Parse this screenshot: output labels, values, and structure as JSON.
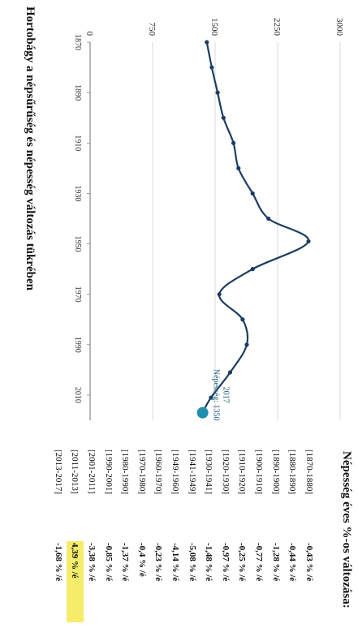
{
  "colors": {
    "line": "#1b3d63",
    "accent": "#1f8fb0",
    "grid": "#d0d0d0",
    "highlight": "#f5ec6a"
  },
  "chart_data": {
    "type": "line",
    "title": "Hortobágy a népsűrűség és népesség változás tükrében",
    "xlabel": "",
    "ylabel": "",
    "xlim": [
      1870,
      2020
    ],
    "ylim": [
      0,
      3000
    ],
    "y_ticks": [
      "0",
      "750",
      "1500",
      "2250",
      "3000"
    ],
    "x_ticks": [
      "1870",
      "1890",
      "1910",
      "1930",
      "1950",
      "1970",
      "1990",
      "2010"
    ],
    "grid": true,
    "series": [
      {
        "values": [
          [
            1870,
            1400
          ],
          [
            1880,
            1460
          ],
          [
            1890,
            1530
          ],
          [
            1900,
            1600
          ],
          [
            1910,
            1720
          ],
          [
            1920,
            1780
          ],
          [
            1930,
            1950
          ],
          [
            1940,
            2140
          ],
          [
            1949,
            2620
          ],
          [
            1960,
            1950
          ],
          [
            1970,
            1550
          ],
          [
            1980,
            1830
          ],
          [
            1990,
            1880
          ],
          [
            2001,
            1680
          ],
          [
            2011,
            1450
          ],
          [
            2017,
            1350
          ]
        ]
      }
    ],
    "annotation": {
      "year_label": "2017",
      "text": "Népesség: 1350"
    }
  },
  "table": {
    "title": "Népesség éves %-os változása:",
    "rows": [
      {
        "period": "[1870-1880]",
        "value": "-0,43 % /é",
        "highlight": false
      },
      {
        "period": "[1880-1890]",
        "value": "-0,44 % /é",
        "highlight": false
      },
      {
        "period": "[1890-1900]",
        "value": "-1,28 % /é",
        "highlight": false
      },
      {
        "period": "[1900-1910]",
        "value": "-0,77 % /é",
        "highlight": false
      },
      {
        "period": "[1910-1920]",
        "value": "-0,25 % /é",
        "highlight": false
      },
      {
        "period": "[1920-1930]",
        "value": "-0,97 % /é",
        "highlight": false
      },
      {
        "period": "[1930-1941]",
        "value": "-1,48 % /é",
        "highlight": false
      },
      {
        "period": "[1941-1949]",
        "value": "-5,08 % /é",
        "highlight": false
      },
      {
        "period": "[1949-1960]",
        "value": "-4,14 % /é",
        "highlight": false
      },
      {
        "period": "[1960-1970]",
        "value": "-0,23 % /é",
        "highlight": false
      },
      {
        "period": "[1970-1980]",
        "value": "-0,4 % /é",
        "highlight": false
      },
      {
        "period": "[1980-1990]",
        "value": "-1,37 % /é",
        "highlight": false
      },
      {
        "period": "[1990-2001]",
        "value": "-0,85 % /é",
        "highlight": false
      },
      {
        "period": "[2001-2011]",
        "value": "-3,38 % /é",
        "highlight": false
      },
      {
        "period": "[2011-2013]",
        "value": "4,39 % /é",
        "highlight": true
      },
      {
        "period": "[2013-2017]",
        "value": "-1,68 % /é",
        "highlight": false
      }
    ]
  }
}
